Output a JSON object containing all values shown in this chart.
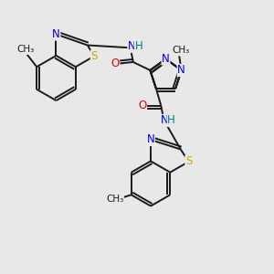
{
  "bg_color": "#e8e8e8",
  "bond_color": "#1a1a1a",
  "bond_width": 1.4,
  "atom_colors": {
    "N": "#0000ee",
    "O": "#ee0000",
    "S": "#ccaa00",
    "H": "#008080",
    "C": "#1a1a1a"
  },
  "fs": 8.5,
  "figsize": [
    3.0,
    3.0
  ],
  "dpi": 100,
  "xlim": [
    0,
    10
  ],
  "ylim": [
    0,
    10
  ]
}
